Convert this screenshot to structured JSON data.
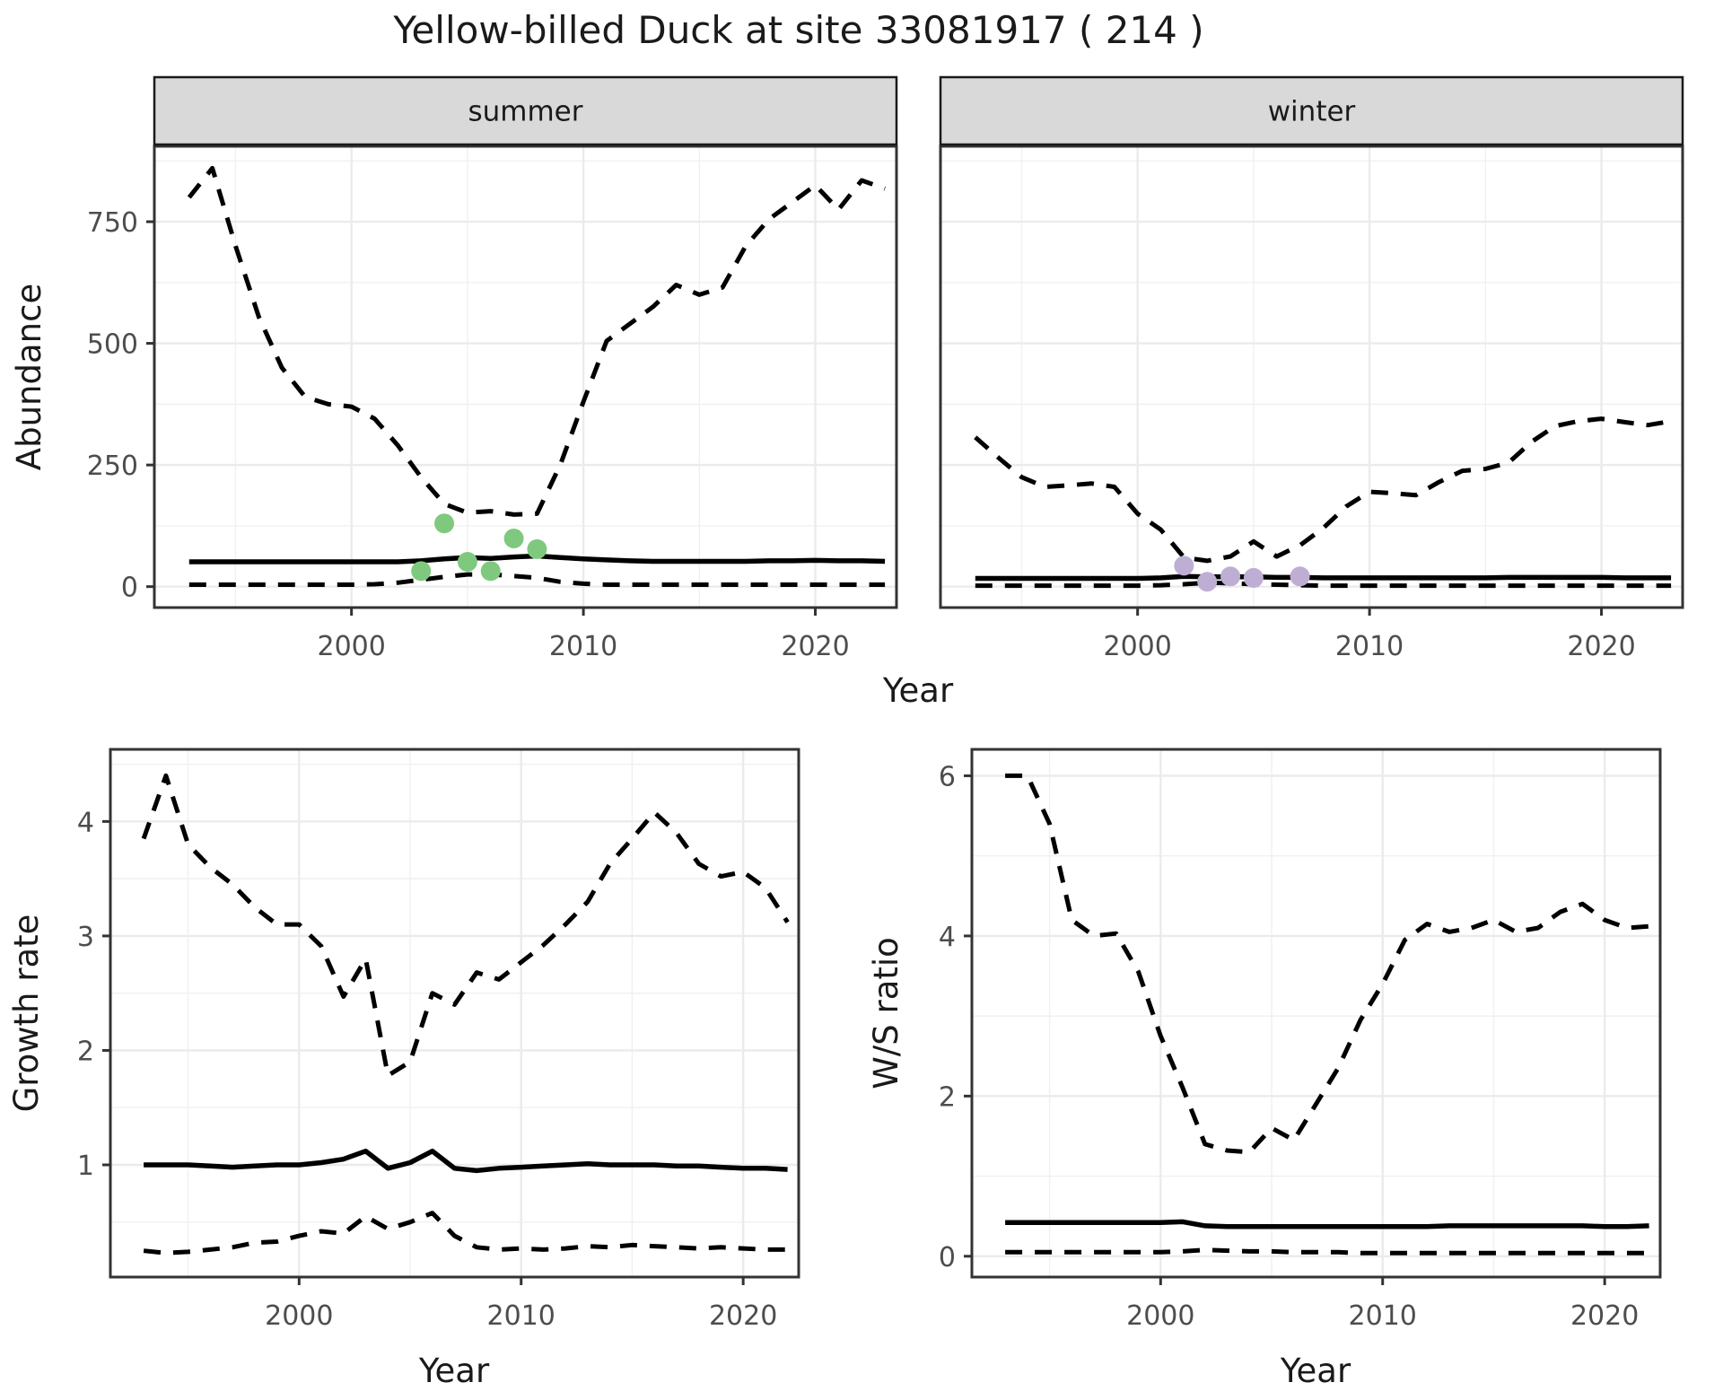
{
  "title": "Yellow-billed Duck at site 33081917 ( 214 )",
  "axes": {
    "abundance_label": "Abundance",
    "growth_rate_label": "Growth rate",
    "ws_ratio_label": "W/S ratio",
    "year_label": "Year"
  },
  "colors": {
    "summer_points": "#7FC97F",
    "winter_points": "#BEAED4",
    "line": "#000000",
    "strip_fill": "#d9d9d9",
    "strip_border": "#1a1a1a",
    "panel_border": "#333333",
    "grid_major": "#ebebeb",
    "grid_minor": "#f0f0f0",
    "tick_label": "#4d4d4d",
    "tick_mark": "#333333",
    "text": "#1a1a1a"
  },
  "chart_data": [
    {
      "id": "abundance_summer",
      "type": "line",
      "facet_label": "summer",
      "xlabel": "Year",
      "ylabel": "Abundance",
      "xlim": [
        1991.5,
        2023.5
      ],
      "ylim": [
        -43,
        905
      ],
      "x_ticks": [
        2000,
        2010,
        2020
      ],
      "y_ticks": [
        0,
        250,
        500,
        750
      ],
      "x": [
        1993,
        1994,
        1995,
        1996,
        1997,
        1998,
        1999,
        2000,
        2001,
        2002,
        2003,
        2004,
        2005,
        2006,
        2007,
        2008,
        2009,
        2010,
        2011,
        2012,
        2013,
        2014,
        2015,
        2016,
        2017,
        2018,
        2019,
        2020,
        2021,
        2022,
        2023
      ],
      "series": [
        {
          "name": "upper 95% CI",
          "style": "dashed",
          "values": [
            800,
            860,
            700,
            555,
            450,
            390,
            375,
            370,
            345,
            290,
            225,
            170,
            152,
            155,
            148,
            150,
            250,
            380,
            505,
            540,
            575,
            620,
            600,
            615,
            700,
            755,
            790,
            825,
            775,
            835,
            818
          ]
        },
        {
          "name": "median",
          "style": "solid",
          "values": [
            51,
            51,
            51,
            51,
            51,
            51,
            51,
            51,
            51,
            51,
            53,
            57,
            60,
            58,
            61,
            63,
            60,
            57,
            55,
            53,
            52,
            52,
            52,
            52,
            52,
            53,
            53,
            54,
            53,
            53,
            52
          ]
        },
        {
          "name": "lower 95% CI",
          "style": "dashed",
          "values": [
            4,
            4,
            4,
            4,
            4,
            4,
            4,
            4,
            5,
            8,
            14,
            20,
            25,
            25,
            22,
            18,
            10,
            6,
            4,
            4,
            4,
            4,
            4,
            4,
            4,
            4,
            4,
            4,
            4,
            4,
            4
          ]
        }
      ],
      "points": {
        "name": "observed summer counts",
        "color": "#7FC97F",
        "x": [
          2003,
          2004,
          2005,
          2006,
          2007,
          2008
        ],
        "y": [
          32,
          130,
          51,
          32,
          99,
          77
        ]
      }
    },
    {
      "id": "abundance_winter",
      "type": "line",
      "facet_label": "winter",
      "xlabel": "Year",
      "ylabel": "Abundance",
      "xlim": [
        1991.5,
        2023.5
      ],
      "ylim": [
        -43,
        905
      ],
      "x_ticks": [
        2000,
        2010,
        2020
      ],
      "y_ticks": [
        0,
        250,
        500,
        750
      ],
      "x": [
        1993,
        1994,
        1995,
        1996,
        1997,
        1998,
        1999,
        2000,
        2001,
        2002,
        2003,
        2004,
        2005,
        2006,
        2007,
        2008,
        2009,
        2010,
        2011,
        2012,
        2013,
        2014,
        2015,
        2016,
        2017,
        2018,
        2019,
        2020,
        2021,
        2022,
        2023
      ],
      "series": [
        {
          "name": "upper 95% CI",
          "style": "dashed",
          "values": [
            307,
            265,
            225,
            205,
            208,
            212,
            205,
            150,
            117,
            60,
            53,
            62,
            93,
            62,
            85,
            120,
            165,
            195,
            192,
            188,
            215,
            238,
            242,
            255,
            298,
            330,
            340,
            345,
            338,
            332,
            340
          ]
        },
        {
          "name": "median",
          "style": "solid",
          "values": [
            17,
            17,
            17,
            17,
            17,
            17,
            17,
            17,
            18,
            21,
            20,
            20,
            20,
            19,
            19,
            18,
            18,
            18,
            18,
            18,
            18,
            18,
            18,
            19,
            19,
            19,
            19,
            19,
            18,
            18,
            18
          ]
        },
        {
          "name": "lower 95% CI",
          "style": "dashed",
          "values": [
            2,
            2,
            2,
            2,
            2,
            2,
            2,
            2,
            3,
            5,
            8,
            7,
            5,
            4,
            3,
            2,
            2,
            2,
            2,
            2,
            2,
            2,
            2,
            2,
            2,
            2,
            2,
            2,
            2,
            2,
            2
          ]
        }
      ],
      "points": {
        "name": "observed winter counts",
        "color": "#BEAED4",
        "x": [
          2002,
          2003,
          2004,
          2005,
          2007
        ],
        "y": [
          43,
          10,
          21,
          18,
          21
        ]
      }
    },
    {
      "id": "growth_rate",
      "type": "line",
      "facet_label": "",
      "xlabel": "Year",
      "ylabel": "Growth rate",
      "xlim": [
        1991.5,
        2022.5
      ],
      "ylim": [
        0.02,
        4.63
      ],
      "x_ticks": [
        2000,
        2010,
        2020
      ],
      "y_ticks": [
        1,
        2,
        3,
        4
      ],
      "x": [
        1993,
        1994,
        1995,
        1996,
        1997,
        1998,
        1999,
        2000,
        2001,
        2002,
        2003,
        2004,
        2005,
        2006,
        2007,
        2008,
        2009,
        2010,
        2011,
        2012,
        2013,
        2014,
        2015,
        2016,
        2017,
        2018,
        2019,
        2020,
        2021,
        2022
      ],
      "series": [
        {
          "name": "upper 95% CI",
          "style": "dashed",
          "values": [
            3.85,
            4.4,
            3.8,
            3.6,
            3.45,
            3.25,
            3.1,
            3.1,
            2.91,
            2.47,
            2.8,
            1.78,
            1.9,
            2.5,
            2.4,
            2.68,
            2.62,
            2.77,
            2.92,
            3.1,
            3.3,
            3.63,
            3.85,
            4.08,
            3.9,
            3.63,
            3.52,
            3.56,
            3.42,
            3.12
          ]
        },
        {
          "name": "median",
          "style": "solid",
          "values": [
            1.0,
            1.0,
            1.0,
            0.99,
            0.98,
            0.99,
            1.0,
            1.0,
            1.02,
            1.05,
            1.12,
            0.97,
            1.02,
            1.12,
            0.97,
            0.95,
            0.97,
            0.98,
            0.99,
            1.0,
            1.01,
            1.0,
            1.0,
            1.0,
            0.99,
            0.99,
            0.98,
            0.97,
            0.97,
            0.96
          ]
        },
        {
          "name": "lower 95% CI",
          "style": "dashed",
          "values": [
            0.25,
            0.23,
            0.24,
            0.26,
            0.28,
            0.32,
            0.33,
            0.38,
            0.42,
            0.4,
            0.55,
            0.44,
            0.5,
            0.58,
            0.38,
            0.28,
            0.26,
            0.27,
            0.26,
            0.27,
            0.29,
            0.28,
            0.3,
            0.29,
            0.28,
            0.27,
            0.28,
            0.27,
            0.26,
            0.26
          ]
        }
      ],
      "points": null
    },
    {
      "id": "ws_ratio",
      "type": "line",
      "facet_label": "",
      "xlabel": "Year",
      "ylabel": "W/S ratio",
      "xlim": [
        1991.5,
        2022.5
      ],
      "ylim": [
        -0.26,
        6.33
      ],
      "x_ticks": [
        2000,
        2010,
        2020
      ],
      "y_ticks": [
        0,
        2,
        4,
        6
      ],
      "x": [
        1993,
        1994,
        1995,
        1996,
        1997,
        1998,
        1999,
        2000,
        2001,
        2002,
        2003,
        2004,
        2005,
        2006,
        2007,
        2008,
        2009,
        2010,
        2011,
        2012,
        2013,
        2014,
        2015,
        2016,
        2017,
        2018,
        2019,
        2020,
        2021,
        2022
      ],
      "series": [
        {
          "name": "upper 95% CI",
          "style": "dashed",
          "values": [
            6.0,
            6.0,
            5.4,
            4.2,
            4.0,
            4.03,
            3.55,
            2.75,
            2.1,
            1.4,
            1.32,
            1.3,
            1.6,
            1.45,
            1.9,
            2.35,
            2.95,
            3.4,
            3.95,
            4.15,
            4.05,
            4.1,
            4.2,
            4.05,
            4.1,
            4.3,
            4.4,
            4.2,
            4.1,
            4.12
          ]
        },
        {
          "name": "median",
          "style": "solid",
          "values": [
            0.42,
            0.42,
            0.42,
            0.42,
            0.42,
            0.42,
            0.42,
            0.42,
            0.43,
            0.38,
            0.37,
            0.37,
            0.37,
            0.37,
            0.37,
            0.37,
            0.37,
            0.37,
            0.37,
            0.37,
            0.38,
            0.38,
            0.38,
            0.38,
            0.38,
            0.38,
            0.38,
            0.37,
            0.37,
            0.38
          ]
        },
        {
          "name": "lower 95% CI",
          "style": "dashed",
          "values": [
            0.05,
            0.05,
            0.05,
            0.05,
            0.05,
            0.05,
            0.05,
            0.05,
            0.06,
            0.08,
            0.07,
            0.06,
            0.06,
            0.05,
            0.05,
            0.05,
            0.04,
            0.04,
            0.04,
            0.04,
            0.04,
            0.04,
            0.04,
            0.04,
            0.04,
            0.04,
            0.04,
            0.04,
            0.04,
            0.04
          ]
        }
      ],
      "points": null
    }
  ]
}
